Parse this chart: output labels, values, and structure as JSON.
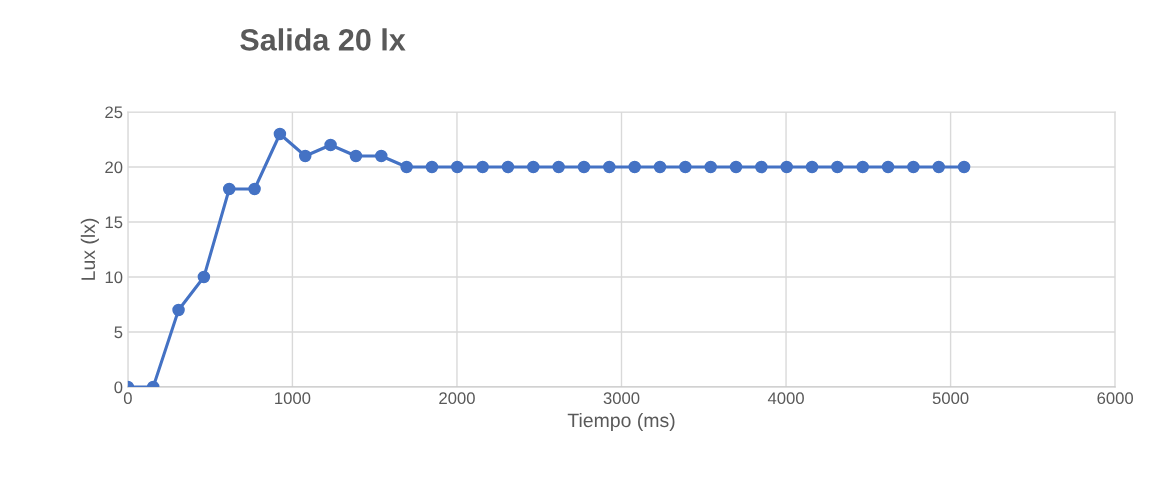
{
  "chart_data": {
    "type": "line",
    "title": "Salida 20 lx",
    "xlabel": "Tiempo (ms)",
    "ylabel": "Lux (lx)",
    "x": [
      0,
      154,
      308,
      462,
      616,
      770,
      924,
      1078,
      1232,
      1386,
      1540,
      1694,
      1848,
      2002,
      2156,
      2310,
      2464,
      2618,
      2772,
      2926,
      3080,
      3234,
      3388,
      3542,
      3696,
      3850,
      4004,
      4158,
      4312,
      4466,
      4620,
      4774,
      4928,
      5082
    ],
    "series": [
      {
        "color": "#4472c4",
        "values": [
          0,
          0,
          7,
          10,
          18,
          18,
          23,
          21,
          22,
          21,
          21,
          20,
          20,
          20,
          20,
          20,
          20,
          20,
          20,
          20,
          20,
          20,
          20,
          20,
          20,
          20,
          20,
          20,
          20,
          20,
          20,
          20,
          20,
          20
        ]
      }
    ],
    "xlim": [
      0,
      6000
    ],
    "xticks": [
      0,
      1000,
      2000,
      3000,
      4000,
      5000,
      6000
    ],
    "ylim": [
      0,
      25
    ],
    "yticks": [
      0,
      5,
      10,
      15,
      20,
      25
    ],
    "grid": true,
    "marker": "circle",
    "line_style": "solid"
  }
}
